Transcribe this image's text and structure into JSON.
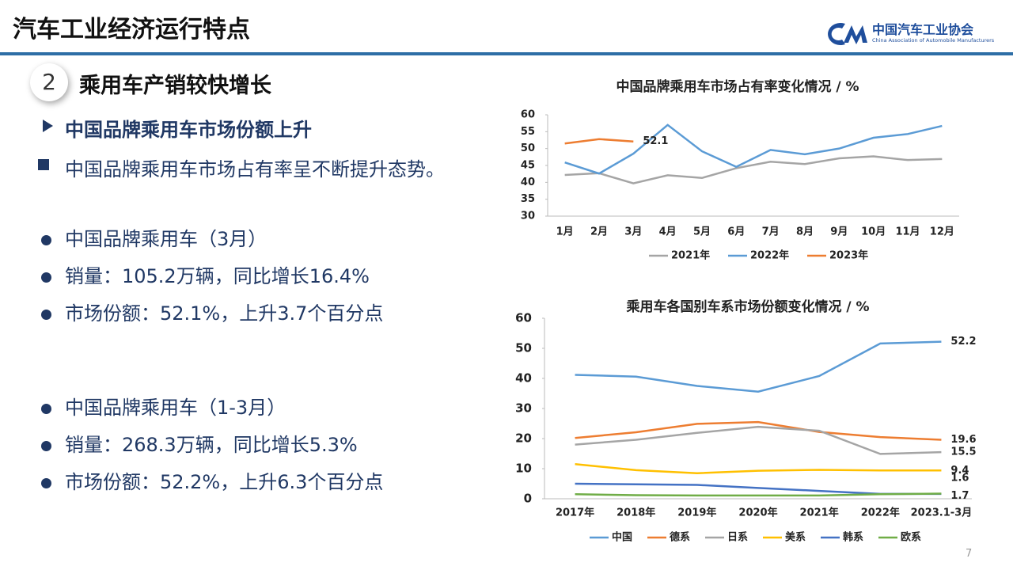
{
  "header": {
    "title": "汽车工业经济运行特点",
    "logo_name": "中国汽车工业协会",
    "logo_subtitle": "China Association of Automobile Manufacturers"
  },
  "section": {
    "number": "2",
    "title": "乘用车产销较快增长"
  },
  "subheading": "中国品牌乘用车市场份额上升",
  "bullet": "中国品牌乘用车市场占有率呈不断提升态势。",
  "groups": [
    [
      "中国品牌乘用车（3月）",
      "销量：105.2万辆，同比增长16.4%",
      "市场份额：52.1%，上升3.7个百分点"
    ],
    [
      "中国品牌乘用车（1-3月）",
      "销量：268.3万辆，同比增长5.3%",
      "市场份额：52.2%，上升6.3个百分点"
    ]
  ],
  "page_number": "7",
  "chart_data": [
    {
      "type": "line",
      "title": "中国品牌乘用车市场占有率变化情况 / %",
      "categories": [
        "1月",
        "2月",
        "3月",
        "4月",
        "5月",
        "6月",
        "7月",
        "8月",
        "9月",
        "10月",
        "11月",
        "12月"
      ],
      "ylim": [
        30,
        60
      ],
      "yticks": [
        30,
        35,
        40,
        45,
        50,
        55,
        60
      ],
      "grid": false,
      "legend": "bottom",
      "series": [
        {
          "name": "2021年",
          "color": "#a5a5a5",
          "values": [
            42.2,
            42.7,
            39.7,
            42.1,
            41.3,
            44.2,
            46.1,
            45.4,
            47.1,
            47.7,
            46.6,
            46.9
          ]
        },
        {
          "name": "2022年",
          "color": "#5b9bd5",
          "values": [
            45.9,
            42.6,
            48.5,
            57.0,
            49.2,
            44.6,
            49.6,
            48.3,
            50.0,
            53.2,
            54.3,
            56.7
          ]
        },
        {
          "name": "2023年",
          "color": "#ed7d31",
          "values": [
            51.5,
            52.8,
            52.1,
            null,
            null,
            null,
            null,
            null,
            null,
            null,
            null,
            null
          ]
        }
      ]
    },
    {
      "type": "line",
      "title": "乘用车各国别车系市场份额变化情况 / %",
      "categories": [
        "2017年",
        "2018年",
        "2019年",
        "2020年",
        "2021年",
        "2022年",
        "2023.1-3月"
      ],
      "ylim": [
        0,
        60
      ],
      "yticks": [
        0,
        10,
        20,
        30,
        40,
        50,
        60
      ],
      "grid": false,
      "legend": "bottom",
      "series": [
        {
          "name": "中国",
          "color": "#5b9bd5",
          "values": [
            41.2,
            40.6,
            37.5,
            35.6,
            40.8,
            51.6,
            52.2
          ]
        },
        {
          "name": "德系",
          "color": "#ed7d31",
          "values": [
            20.2,
            22.1,
            24.9,
            25.5,
            22.2,
            20.5,
            19.6
          ]
        },
        {
          "name": "日系",
          "color": "#a5a5a5",
          "values": [
            18.0,
            19.6,
            21.9,
            23.9,
            22.6,
            14.9,
            15.5
          ]
        },
        {
          "name": "美系",
          "color": "#ffc000",
          "values": [
            11.5,
            9.5,
            8.5,
            9.3,
            9.6,
            9.4,
            9.4
          ]
        },
        {
          "name": "韩系",
          "color": "#4472c4",
          "values": [
            5.0,
            4.8,
            4.6,
            3.6,
            2.6,
            1.6,
            1.6
          ]
        },
        {
          "name": "欧系",
          "color": "#70ad47",
          "values": [
            1.5,
            1.2,
            1.1,
            1.1,
            1.1,
            1.5,
            1.7
          ]
        }
      ]
    }
  ]
}
